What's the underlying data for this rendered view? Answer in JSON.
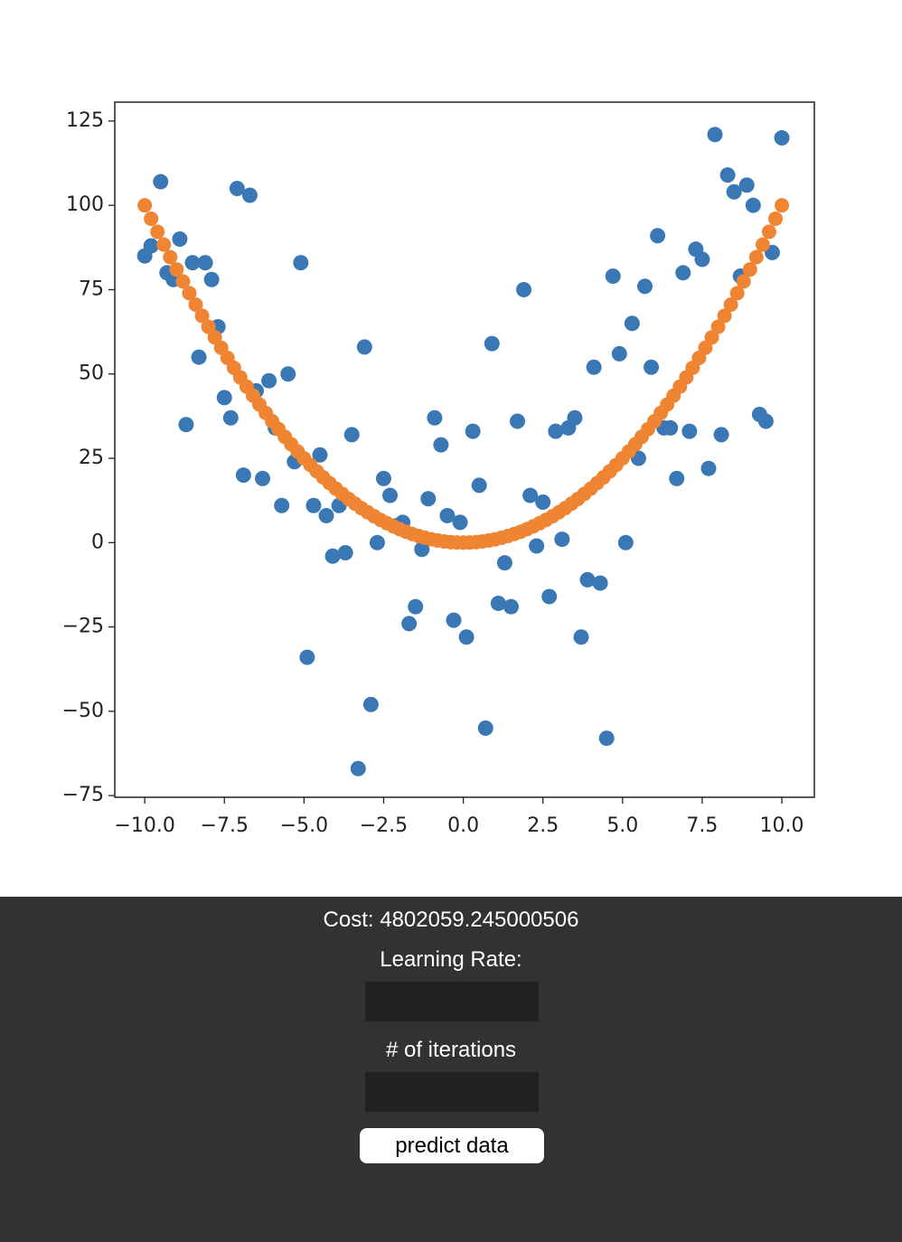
{
  "chart_data": {
    "type": "scatter",
    "xlim": [
      -10.94,
      11.02
    ],
    "ylim": [
      -75.5,
      130.6
    ],
    "xticks": [
      {
        "value": -10,
        "label": "−10.0"
      },
      {
        "value": -7.5,
        "label": "−7.5"
      },
      {
        "value": -5,
        "label": "−5.0"
      },
      {
        "value": -2.5,
        "label": "−2.5"
      },
      {
        "value": 0,
        "label": "0.0"
      },
      2.5,
      {
        "value": 5,
        "label": "5.0"
      },
      7.5,
      {
        "value": 10,
        "label": "10.0"
      }
    ],
    "yticks": [
      {
        "value": -75,
        "label": "−75"
      },
      {
        "value": -50,
        "label": "−50"
      },
      {
        "value": -25,
        "label": "−25"
      },
      0,
      25,
      50,
      75,
      100,
      125
    ],
    "series": [
      {
        "color": "#3a78b5",
        "x": [
          -10,
          -9.8,
          -9.5,
          -9.3,
          -9.1,
          -8.9,
          -8.7,
          -8.5,
          -8.3,
          -8.1,
          -7.9,
          -7.7,
          -7.5,
          -7.3,
          -7.1,
          -6.9,
          -6.7,
          -6.5,
          -6.3,
          -6.1,
          -5.9,
          -5.7,
          -5.5,
          -5.3,
          -5.1,
          -4.9,
          -4.7,
          -4.5,
          -4.3,
          -4.1,
          -3.9,
          -3.7,
          -3.5,
          -3.3,
          -3.1,
          -2.9,
          -2.7,
          -2.5,
          -2.3,
          -2.1,
          -1.9,
          -1.7,
          -1.5,
          -1.3,
          -1.1,
          -0.9,
          -0.7,
          -0.5,
          -0.3,
          -0.1,
          0.1,
          0.3,
          0.5,
          0.7,
          0.9,
          1.1,
          1.3,
          1.5,
          1.7,
          1.9,
          2.1,
          2.3,
          2.5,
          2.7,
          2.9,
          3.1,
          3.3,
          3.5,
          3.7,
          3.9,
          4.1,
          4.3,
          4.5,
          4.7,
          4.9,
          5.1,
          5.3,
          5.5,
          5.7,
          5.9,
          6.1,
          6.3,
          6.5,
          6.7,
          6.9,
          7.1,
          7.3,
          7.5,
          7.7,
          7.9,
          8.1,
          8.3,
          8.5,
          8.7,
          8.9,
          9.1,
          9.3,
          9.5,
          9.7,
          10
        ],
        "values": [
          85,
          88,
          107,
          80,
          78,
          90,
          35,
          83,
          55,
          83,
          78,
          64,
          43,
          37,
          105,
          20,
          103,
          45,
          19,
          48,
          34,
          11,
          50,
          24,
          83,
          -34,
          11,
          26,
          8,
          -4,
          11,
          -3,
          32,
          -67,
          58,
          -48,
          0,
          19,
          14,
          5,
          6,
          -24,
          -19,
          -2,
          13,
          37,
          29,
          8,
          -23,
          6,
          -28,
          33,
          17,
          -55,
          59,
          -18,
          -6,
          -19,
          36,
          75,
          14,
          -1,
          12,
          -16,
          33,
          1,
          34,
          37,
          -28,
          -11,
          52,
          -12,
          -58,
          79,
          56,
          0,
          65,
          25,
          76,
          52,
          91,
          34,
          34,
          19,
          80,
          33,
          87,
          84,
          22,
          121,
          32,
          109,
          104,
          79,
          106,
          100,
          38,
          36,
          86,
          120
        ]
      },
      {
        "color": "#ef8533",
        "x": [
          -10,
          -9.8,
          -9.6,
          -9.4,
          -9.2,
          -9,
          -8.8,
          -8.6,
          -8.4,
          -8.2,
          -8,
          -7.8,
          -7.6,
          -7.4,
          -7.2,
          -7,
          -6.8,
          -6.6,
          -6.4,
          -6.2,
          -6,
          -5.8,
          -5.6,
          -5.4,
          -5.2,
          -5,
          -4.8,
          -4.6,
          -4.4,
          -4.2,
          -4,
          -3.8,
          -3.6,
          -3.4,
          -3.2,
          -3,
          -2.8,
          -2.6,
          -2.4,
          -2.2,
          -2,
          -1.8,
          -1.6,
          -1.4,
          -1.2,
          -1,
          -0.8,
          -0.6,
          -0.4,
          -0.2,
          0,
          0.2,
          0.4,
          0.6,
          0.8,
          1,
          1.2,
          1.4,
          1.6,
          1.8,
          2,
          2.2,
          2.4,
          2.6,
          2.8,
          3,
          3.2,
          3.4,
          3.6,
          3.8,
          4,
          4.2,
          4.4,
          4.6,
          4.8,
          5,
          5.2,
          5.4,
          5.6,
          5.8,
          6,
          6.2,
          6.4,
          6.6,
          6.8,
          7,
          7.2,
          7.4,
          7.6,
          7.8,
          8,
          8.2,
          8.4,
          8.6,
          8.8,
          9,
          9.2,
          9.4,
          9.6,
          9.8,
          10
        ],
        "values": [
          100,
          96.04,
          92.16,
          88.36,
          84.64,
          81,
          77.44,
          73.96,
          70.56,
          67.24,
          64,
          60.84,
          57.76,
          54.76,
          51.84,
          49,
          46.24,
          43.56,
          40.96,
          38.44,
          36,
          33.64,
          31.36,
          29.16,
          27.04,
          25,
          23.04,
          21.16,
          19.36,
          17.64,
          16,
          14.44,
          12.96,
          11.56,
          10.24,
          9,
          7.84,
          6.76,
          5.76,
          4.84,
          4,
          3.24,
          2.56,
          1.96,
          1.44,
          1,
          0.64,
          0.36,
          0.16,
          0.04,
          0,
          0.04,
          0.16,
          0.36,
          0.64,
          1,
          1.44,
          1.96,
          2.56,
          3.24,
          4,
          4.84,
          5.76,
          6.76,
          7.84,
          9,
          10.24,
          11.56,
          12.96,
          14.44,
          16,
          17.64,
          19.36,
          21.16,
          23.04,
          25,
          27.04,
          29.16,
          31.36,
          33.64,
          36,
          38.44,
          40.96,
          43.56,
          46.24,
          49,
          51.84,
          54.76,
          57.76,
          60.84,
          64,
          67.24,
          70.56,
          73.96,
          77.44,
          81,
          84.64,
          88.36,
          92.16,
          96.04,
          100
        ]
      }
    ]
  },
  "controls": {
    "cost": "Cost: 4802059.245000506",
    "learning_rate_label": "Learning Rate:",
    "iterations_label": "# of iterations",
    "button": "predict data"
  }
}
